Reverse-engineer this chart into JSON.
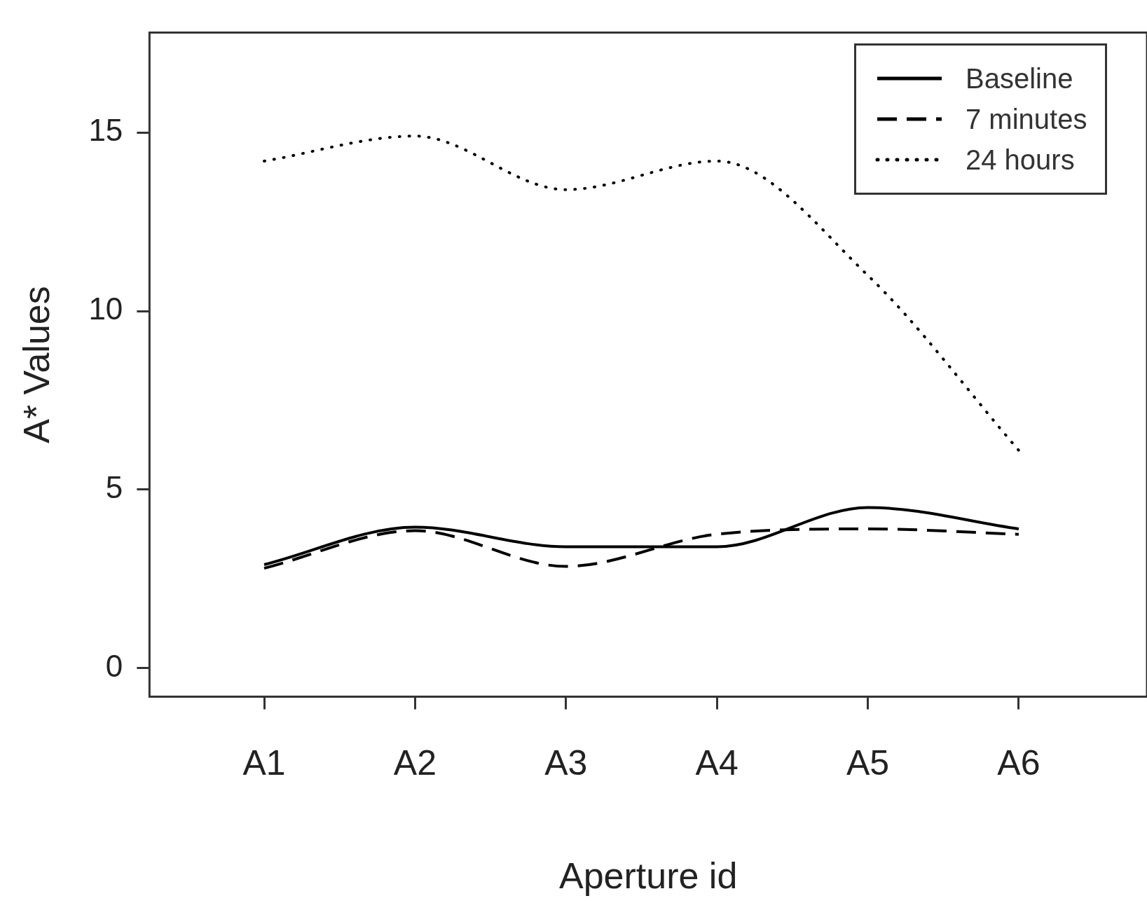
{
  "chart_data": {
    "type": "line",
    "xlabel": "Aperture id",
    "ylabel": "A* Values",
    "categories": [
      "A1",
      "A2",
      "A3",
      "A4",
      "A5",
      "A6"
    ],
    "series": [
      {
        "name": "Baseline",
        "color": "#000000",
        "line_style": "solid",
        "values": [
          2.9,
          3.95,
          3.4,
          3.4,
          4.5,
          3.9
        ]
      },
      {
        "name": "7 minutes",
        "color": "#000000",
        "line_style": "dashed",
        "values": [
          2.8,
          3.85,
          2.85,
          3.75,
          3.9,
          3.75
        ]
      },
      {
        "name": "24 hours",
        "color": "#000000",
        "line_style": "dotted",
        "values": [
          14.2,
          14.9,
          13.4,
          14.2,
          11.0,
          6.1
        ]
      }
    ],
    "ylim": [
      -0.8,
      17.8
    ],
    "yticks": [
      0,
      5,
      10,
      15
    ],
    "grid": false,
    "legend": "top right",
    "marker": "none"
  }
}
